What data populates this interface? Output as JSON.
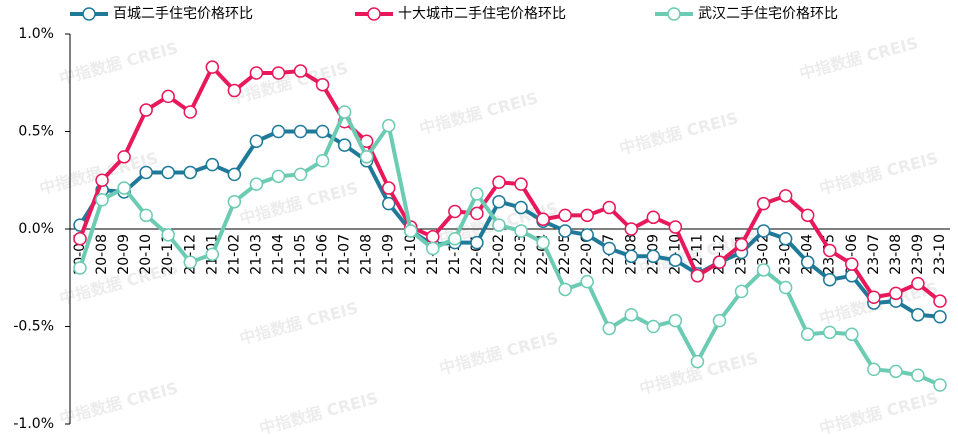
{
  "chart_data": {
    "type": "line",
    "watermark": "中指数据 CREIS",
    "categories": [
      "20-07",
      "20-08",
      "20-09",
      "20-10",
      "20-11",
      "20-12",
      "21-01",
      "21-02",
      "21-03",
      "21-04",
      "21-05",
      "21-06",
      "21-07",
      "21-08",
      "21-09",
      "21-10",
      "21-11",
      "21-12",
      "22-01",
      "22-02",
      "22-03",
      "22-04",
      "22-05",
      "22-06",
      "22-07",
      "22-08",
      "22-09",
      "22-10",
      "22-11",
      "22-12",
      "23-01",
      "23-02",
      "23-03",
      "23-04",
      "23-05",
      "23-06",
      "23-07",
      "23-08",
      "23-09",
      "23-10"
    ],
    "series": [
      {
        "name": "百城二手住宅价格环比",
        "color": "#1f7a9a",
        "values": [
          0.02,
          0.2,
          0.19,
          0.29,
          0.29,
          0.29,
          0.33,
          0.28,
          0.45,
          0.5,
          0.5,
          0.5,
          0.43,
          0.35,
          0.13,
          -0.01,
          -0.08,
          -0.07,
          -0.07,
          0.14,
          0.11,
          0.04,
          -0.01,
          -0.03,
          -0.1,
          -0.14,
          -0.14,
          -0.16,
          -0.23,
          -0.17,
          -0.12,
          -0.01,
          -0.05,
          -0.17,
          -0.26,
          -0.24,
          -0.38,
          -0.37,
          -0.44,
          -0.45
        ]
      },
      {
        "name": "十大城市二手住宅价格环比",
        "color": "#e8185a",
        "values": [
          -0.05,
          0.25,
          0.37,
          0.61,
          0.68,
          0.6,
          0.83,
          0.71,
          0.8,
          0.8,
          0.81,
          0.74,
          0.55,
          0.45,
          0.21,
          0.01,
          -0.04,
          0.09,
          0.08,
          0.24,
          0.23,
          0.05,
          0.07,
          0.07,
          0.11,
          0.0,
          0.06,
          0.01,
          -0.24,
          -0.17,
          -0.08,
          0.13,
          0.17,
          0.07,
          -0.11,
          -0.18,
          -0.35,
          -0.33,
          -0.28,
          -0.37
        ]
      },
      {
        "name": "武汉二手住宅价格环比",
        "color": "#6ccbb3",
        "values": [
          -0.2,
          0.15,
          0.21,
          0.07,
          -0.03,
          -0.17,
          -0.13,
          0.14,
          0.23,
          0.27,
          0.28,
          0.35,
          0.6,
          0.37,
          0.53,
          -0.01,
          -0.1,
          -0.05,
          0.18,
          0.02,
          -0.01,
          -0.07,
          -0.31,
          -0.27,
          -0.51,
          -0.44,
          -0.5,
          -0.47,
          -0.68,
          -0.47,
          -0.32,
          -0.21,
          -0.3,
          -0.54,
          -0.53,
          -0.54,
          -0.72,
          -0.73,
          -0.75,
          -0.8
        ]
      }
    ],
    "ylim": [
      -1.0,
      1.0
    ],
    "yticks": [
      {
        "value": 1.0,
        "label": "1.0%"
      },
      {
        "value": 0.5,
        "label": "0.5%"
      },
      {
        "value": 0,
        "label": "0.0%"
      },
      {
        "value": -0.5,
        "label": "-0.5%"
      },
      {
        "value": -1.0,
        "label": "-1.0%"
      }
    ]
  }
}
